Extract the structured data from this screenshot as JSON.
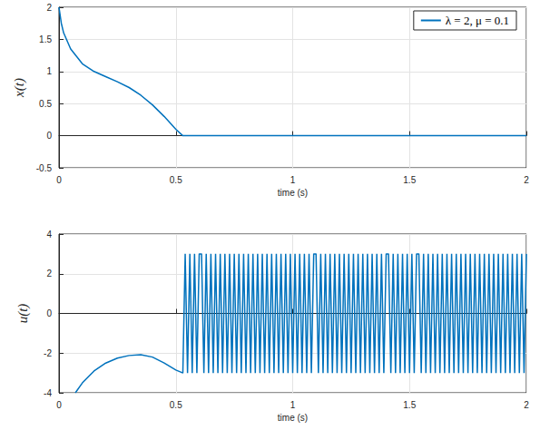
{
  "chart_data": [
    {
      "type": "line",
      "x_label": "time (s)",
      "y_label": "x(t)",
      "xlim": [
        0,
        2
      ],
      "xticks": [
        0,
        0.5,
        1,
        1.5,
        2
      ],
      "ylim": [
        -0.5,
        2
      ],
      "yticks": [
        -0.5,
        0,
        0.5,
        1,
        1.5,
        2
      ],
      "grid": true,
      "legend": "upper right",
      "series": [
        {
          "name": "λ = 2, μ = 0.1",
          "color": "#0072bd",
          "x": [
            0,
            0.01,
            0.02,
            0.05,
            0.1,
            0.15,
            0.2,
            0.25,
            0.3,
            0.35,
            0.4,
            0.45,
            0.5,
            0.53,
            1,
            1.5,
            2
          ],
          "values": [
            2,
            1.75,
            1.6,
            1.35,
            1.12,
            1.0,
            0.92,
            0.84,
            0.75,
            0.63,
            0.48,
            0.3,
            0.1,
            0,
            0,
            0,
            0
          ]
        }
      ]
    },
    {
      "type": "line",
      "x_label": "time (s)",
      "y_label": "u(t)",
      "xlim": [
        0,
        2
      ],
      "xticks": [
        0,
        0.5,
        1,
        1.5,
        2
      ],
      "ylim": [
        -4,
        4
      ],
      "yticks": [
        -4,
        -2,
        0,
        2,
        4
      ],
      "grid": true,
      "series": [
        {
          "color": "#0072bd",
          "x": [
            0.07,
            0.1,
            0.15,
            0.2,
            0.25,
            0.3,
            0.35,
            0.4,
            0.45,
            0.5,
            0.53,
            0.54,
            0.55,
            0.56,
            0.57,
            0.58,
            0.59,
            0.6,
            0.61,
            0.62,
            0.63,
            0.64,
            0.65,
            0.66,
            0.67,
            0.68,
            0.69,
            0.7,
            0.71,
            0.72,
            0.73,
            0.74,
            0.75,
            0.76,
            0.77,
            0.78,
            0.79,
            0.8,
            0.81,
            0.82,
            0.83,
            0.84,
            0.85,
            0.86,
            0.87,
            0.88,
            0.89,
            0.9,
            0.91,
            0.92,
            0.93,
            0.94,
            0.95,
            0.96,
            0.97,
            0.98,
            0.99,
            1,
            1.01,
            1.02,
            1.03,
            1.04,
            1.05,
            1.06,
            1.07,
            1.08,
            1.09,
            1.1,
            1.11,
            1.12,
            1.13,
            1.14,
            1.15,
            1.16,
            1.17,
            1.18,
            1.19,
            1.2,
            1.21,
            1.22,
            1.23,
            1.24,
            1.25,
            1.26,
            1.27,
            1.28,
            1.29,
            1.3,
            1.31,
            1.32,
            1.33,
            1.34,
            1.35,
            1.36,
            1.37,
            1.38,
            1.39,
            1.4,
            1.41,
            1.42,
            1.43,
            1.44,
            1.45,
            1.46,
            1.47,
            1.48,
            1.49,
            1.5,
            1.51,
            1.52,
            1.53,
            1.54,
            1.55,
            1.56,
            1.57,
            1.58,
            1.59,
            1.6,
            1.61,
            1.62,
            1.63,
            1.64,
            1.65,
            1.66,
            1.67,
            1.68,
            1.69,
            1.7,
            1.71,
            1.72,
            1.73,
            1.74,
            1.75,
            1.76,
            1.77,
            1.78,
            1.79,
            1.8,
            1.81,
            1.82,
            1.83,
            1.84,
            1.85,
            1.86,
            1.87,
            1.88,
            1.89,
            1.9,
            1.91,
            1.92,
            1.93,
            1.94,
            1.95,
            1.96,
            1.97,
            1.98,
            1.99,
            2
          ],
          "values": [
            -4,
            -3.5,
            -2.9,
            -2.5,
            -2.25,
            -2.12,
            -2.08,
            -2.2,
            -2.5,
            -2.85,
            -3,
            3,
            -3,
            3,
            -3,
            3,
            -3,
            3,
            3,
            -3,
            3,
            -3,
            3,
            -3,
            3,
            -3,
            3,
            -3,
            3,
            -3,
            3,
            -3,
            3,
            -3,
            3,
            -3,
            3,
            -3,
            3,
            -3,
            3,
            -3,
            3,
            -3,
            3,
            -3,
            3,
            -3,
            3,
            -3,
            3,
            -3,
            3,
            -3,
            3,
            -3,
            3,
            -3,
            3,
            -3,
            3,
            -3,
            3,
            -3,
            3,
            -3,
            3,
            3,
            -3,
            3,
            -3,
            3,
            -3,
            3,
            -3,
            3,
            -3,
            3,
            -3,
            3,
            -3,
            3,
            -3,
            3,
            -3,
            3,
            -3,
            3,
            -3,
            3,
            -3,
            3,
            -3,
            3,
            -3,
            3,
            -3,
            3,
            3,
            -3,
            3,
            -3,
            3,
            -3,
            3,
            -3,
            3,
            -3,
            3,
            -3,
            3,
            3,
            -3,
            3,
            -3,
            3,
            -3,
            3,
            -3,
            3,
            -3,
            3,
            -3,
            3,
            -3,
            3,
            -3,
            3,
            -3,
            3,
            -3,
            3,
            -3,
            3,
            -3,
            3,
            -3,
            3,
            -3,
            3,
            -3,
            3,
            -3,
            3,
            -3,
            3,
            -3,
            3,
            -3,
            3,
            -3,
            3,
            -3,
            3,
            -3,
            3,
            -3,
            3
          ]
        }
      ]
    }
  ]
}
